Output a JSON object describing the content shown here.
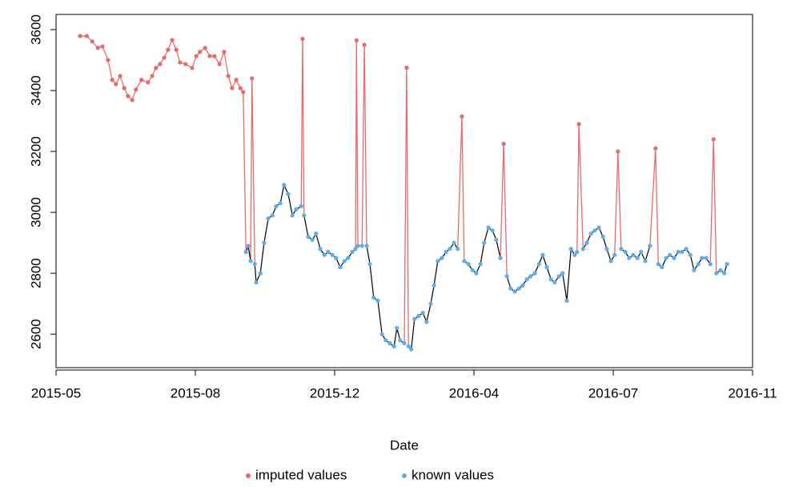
{
  "chart_data": {
    "type": "line",
    "x_label": "Date",
    "xlim": [
      2015.358,
      2016.858
    ],
    "xticks": [
      {
        "value": 2015.358,
        "label": "2015-05"
      },
      {
        "value": 2015.658,
        "label": "2015-08"
      },
      {
        "value": 2015.958,
        "label": "2015-12"
      },
      {
        "value": 2016.258,
        "label": "2016-04"
      },
      {
        "value": 2016.558,
        "label": "2016-07"
      },
      {
        "value": 2016.858,
        "label": "2016-11"
      }
    ],
    "ylim": [
      2490,
      3650
    ],
    "yticks": [
      2600,
      2800,
      3000,
      3200,
      3400,
      3600
    ],
    "line_color": "#000000",
    "x": [
      2015.41,
      2015.424,
      2015.436,
      2015.448,
      2015.458,
      2015.47,
      2015.479,
      2015.487,
      2015.496,
      2015.505,
      2015.513,
      2015.522,
      2015.53,
      2015.542,
      2015.556,
      2015.565,
      2015.573,
      2015.582,
      2015.591,
      2015.599,
      2015.608,
      2015.617,
      2015.625,
      2015.637,
      2015.651,
      2015.66,
      2015.668,
      2015.679,
      2015.689,
      2015.699,
      2015.71,
      2015.72,
      2015.729,
      2015.737,
      2015.746,
      2015.755,
      2015.761,
      2015.767,
      2015.772,
      2015.777,
      2015.78,
      2015.786,
      2015.789,
      2015.798,
      2015.806,
      2015.815,
      2015.824,
      2015.832,
      2015.841,
      2015.849,
      2015.858,
      2015.867,
      2015.875,
      2015.886,
      2015.889,
      2015.892,
      2015.901,
      2015.91,
      2015.918,
      2015.927,
      2015.936,
      2015.944,
      2015.953,
      2015.961,
      2015.97,
      2015.979,
      2015.987,
      2015.996,
      2016.003,
      2016.005,
      2016.008,
      2016.017,
      2016.022,
      2016.027,
      2016.034,
      2016.042,
      2016.051,
      2016.06,
      2016.068,
      2016.077,
      2016.086,
      2016.092,
      2016.099,
      2016.108,
      2016.113,
      2016.117,
      2016.123,
      2016.13,
      2016.139,
      2016.148,
      2016.156,
      2016.165,
      2016.172,
      2016.18,
      2016.189,
      2016.198,
      2016.206,
      2016.215,
      2016.223,
      2016.232,
      2016.237,
      2016.246,
      2016.255,
      2016.263,
      2016.272,
      2016.28,
      2016.289,
      2016.298,
      2016.306,
      2016.315,
      2016.322,
      2016.329,
      2016.337,
      2016.346,
      2016.355,
      2016.363,
      2016.372,
      2016.38,
      2016.389,
      2016.398,
      2016.406,
      2016.415,
      2016.424,
      2016.432,
      2016.441,
      2016.449,
      2016.458,
      2016.467,
      2016.475,
      2016.48,
      2016.484,
      2016.493,
      2016.501,
      2016.51,
      2016.518,
      2016.527,
      2016.536,
      2016.544,
      2016.553,
      2016.561,
      2016.568,
      2016.575,
      2016.584,
      2016.592,
      2016.601,
      2016.61,
      2016.618,
      2016.627,
      2016.637,
      2016.649,
      2016.655,
      2016.663,
      2016.672,
      2016.68,
      2016.689,
      2016.698,
      2016.706,
      2016.715,
      2016.724,
      2016.732,
      2016.741,
      2016.749,
      2016.758,
      2016.767,
      2016.774,
      2016.78,
      2016.789,
      2016.797,
      2016.803
    ],
    "series": [
      {
        "name": "imputed values",
        "color": "#e8696b",
        "values": [
          3579,
          3579,
          3561,
          3540,
          3545,
          3500,
          3435,
          3421,
          3448,
          3408,
          3382,
          3369,
          3403,
          3435,
          3427,
          3448,
          3474,
          3487,
          3508,
          3534,
          3566,
          3534,
          3492,
          3487,
          3474,
          3513,
          3527,
          3540,
          3513,
          3513,
          3487,
          3527,
          3448,
          3408,
          3435,
          3408,
          3395,
          null,
          null,
          null,
          3440,
          null,
          null,
          null,
          null,
          null,
          null,
          null,
          null,
          null,
          null,
          null,
          null,
          null,
          3570,
          null,
          null,
          null,
          null,
          null,
          null,
          null,
          null,
          null,
          null,
          null,
          null,
          null,
          null,
          3565,
          null,
          null,
          3550,
          null,
          null,
          null,
          null,
          null,
          null,
          null,
          null,
          null,
          null,
          null,
          3475,
          null,
          null,
          null,
          null,
          null,
          null,
          null,
          null,
          null,
          null,
          null,
          null,
          null,
          null,
          3315,
          null,
          null,
          null,
          null,
          null,
          null,
          null,
          null,
          null,
          null,
          3225,
          null,
          null,
          null,
          null,
          null,
          null,
          null,
          null,
          null,
          null,
          null,
          null,
          null,
          null,
          null,
          null,
          null,
          null,
          null,
          3290,
          null,
          null,
          null,
          null,
          null,
          null,
          null,
          null,
          null,
          3200,
          null,
          null,
          null,
          null,
          null,
          null,
          null,
          null,
          3210,
          null,
          null,
          null,
          null,
          null,
          null,
          null,
          null,
          null,
          null,
          null,
          null,
          null,
          null,
          3240,
          null,
          null,
          null,
          null
        ]
      },
      {
        "name": "known values",
        "color": "#5dade8",
        "values": [
          null,
          null,
          null,
          null,
          null,
          null,
          null,
          null,
          null,
          null,
          null,
          null,
          null,
          null,
          null,
          null,
          null,
          null,
          null,
          null,
          null,
          null,
          null,
          null,
          null,
          null,
          null,
          null,
          null,
          null,
          null,
          null,
          null,
          null,
          null,
          null,
          null,
          2870,
          2890,
          2840,
          null,
          2830,
          2770,
          2800,
          2900,
          2980,
          2990,
          3020,
          3030,
          3090,
          3060,
          2990,
          3010,
          3020,
          null,
          2990,
          2920,
          2910,
          2930,
          2880,
          2860,
          2870,
          2860,
          2850,
          2820,
          2840,
          2850,
          2870,
          2880,
          null,
          2890,
          2890,
          null,
          2890,
          2830,
          2720,
          2710,
          2600,
          2580,
          2570,
          2560,
          2620,
          2580,
          2570,
          null,
          2560,
          2550,
          2650,
          2660,
          2670,
          2640,
          2700,
          2760,
          2840,
          2850,
          2870,
          2880,
          2900,
          2880,
          null,
          2840,
          2830,
          2810,
          2800,
          2830,
          2900,
          2950,
          2940,
          2910,
          2850,
          null,
          2790,
          2750,
          2740,
          2750,
          2760,
          2780,
          2790,
          2800,
          2830,
          2860,
          2820,
          2780,
          2770,
          2790,
          2800,
          2710,
          2880,
          2860,
          2870,
          null,
          2880,
          2900,
          2930,
          2940,
          2950,
          2920,
          2880,
          2840,
          2860,
          null,
          2880,
          2870,
          2850,
          2860,
          2850,
          2870,
          2840,
          2890,
          null,
          2830,
          2820,
          2850,
          2860,
          2850,
          2870,
          2870,
          2880,
          2860,
          2810,
          2830,
          2850,
          2850,
          2830,
          null,
          2800,
          2810,
          2800,
          2830
        ]
      }
    ]
  }
}
